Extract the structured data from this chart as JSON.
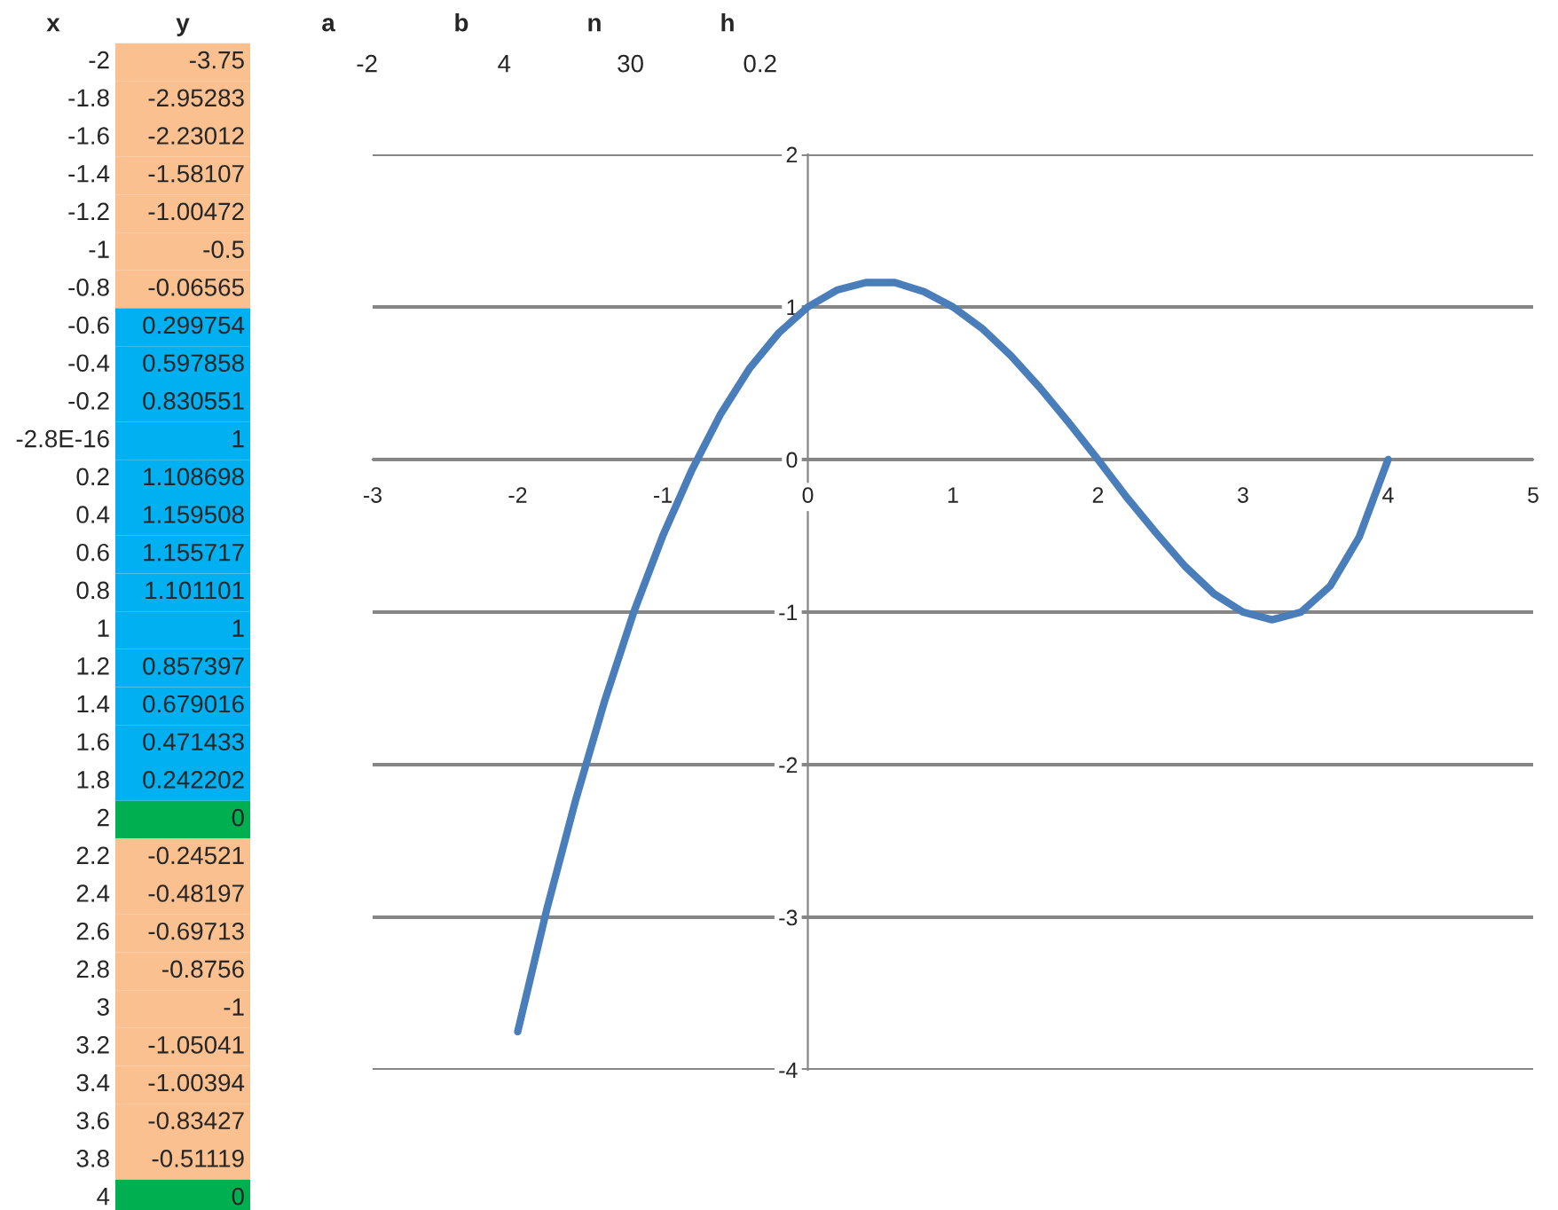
{
  "chart_data": {
    "type": "line",
    "annotations": [
      "x",
      "y",
      "a",
      "b",
      "n",
      "h",
      "-2",
      "4",
      "30",
      "0.2",
      "-2",
      "-1.8",
      "-1.6",
      "-1.4",
      "-1.2",
      "-1",
      "-0.8",
      "-0.6",
      "-0.4",
      "-0.2",
      "-2.8E-16",
      "0.2",
      "0.4",
      "0.6",
      "0.8",
      "1",
      "1.2",
      "1.4",
      "1.6",
      "1.8",
      "2",
      "2.2",
      "2.4",
      "2.6",
      "2.8",
      "3",
      "3.2",
      "3.4",
      "3.6",
      "3.8",
      "4",
      "-3.75",
      "-2.95283",
      "-2.23012",
      "-1.58107",
      "-1.00472",
      "-0.5",
      "-0.06565",
      "0.299754",
      "0.597858",
      "0.830551",
      "1",
      "1.108698",
      "1.159508",
      "1.155717",
      "1.101101",
      "1",
      "0.857397",
      "0.679016",
      "0.471433",
      "0.242202",
      "0",
      "-0.24521",
      "-0.48197",
      "-0.69713",
      "-0.8756",
      "-1",
      "-1.05041",
      "-1.00394",
      "-0.83427",
      "-0.51119",
      "0"
    ],
    "x": [
      -2,
      -1.8,
      -1.6,
      -1.4,
      -1.2,
      -1,
      -0.8,
      -0.6,
      -0.4,
      -0.2,
      0,
      0.2,
      0.4,
      0.6,
      0.8,
      1,
      1.2,
      1.4,
      1.6,
      1.8,
      2,
      2.2,
      2.4,
      2.6,
      2.8,
      3,
      3.2,
      3.4,
      3.6,
      3.8,
      4
    ],
    "series": [
      {
        "color": "#4a7ebb",
        "values": [
          -3.75,
          -2.95,
          -2.23,
          -1.58,
          -1.0,
          -0.5,
          -0.07,
          0.3,
          0.6,
          0.83,
          1,
          1.11,
          1.16,
          1.16,
          1.1,
          1,
          0.86,
          0.68,
          0.47,
          0.24,
          0,
          -0.25,
          -0.48,
          -0.7,
          -0.88,
          -1,
          -1.05,
          -1.0,
          -0.83,
          -0.51,
          0
        ]
      }
    ],
    "xlim": [
      -3,
      5
    ],
    "xticks": [
      -3,
      -2,
      -1,
      0,
      1,
      2,
      3,
      4,
      5
    ],
    "ylim": [
      -4,
      2
    ],
    "yticks": [
      -4,
      -3,
      -2,
      -1,
      0,
      1,
      2
    ],
    "grid": "y",
    "marker": "none",
    "line_style": "solid"
  }
}
